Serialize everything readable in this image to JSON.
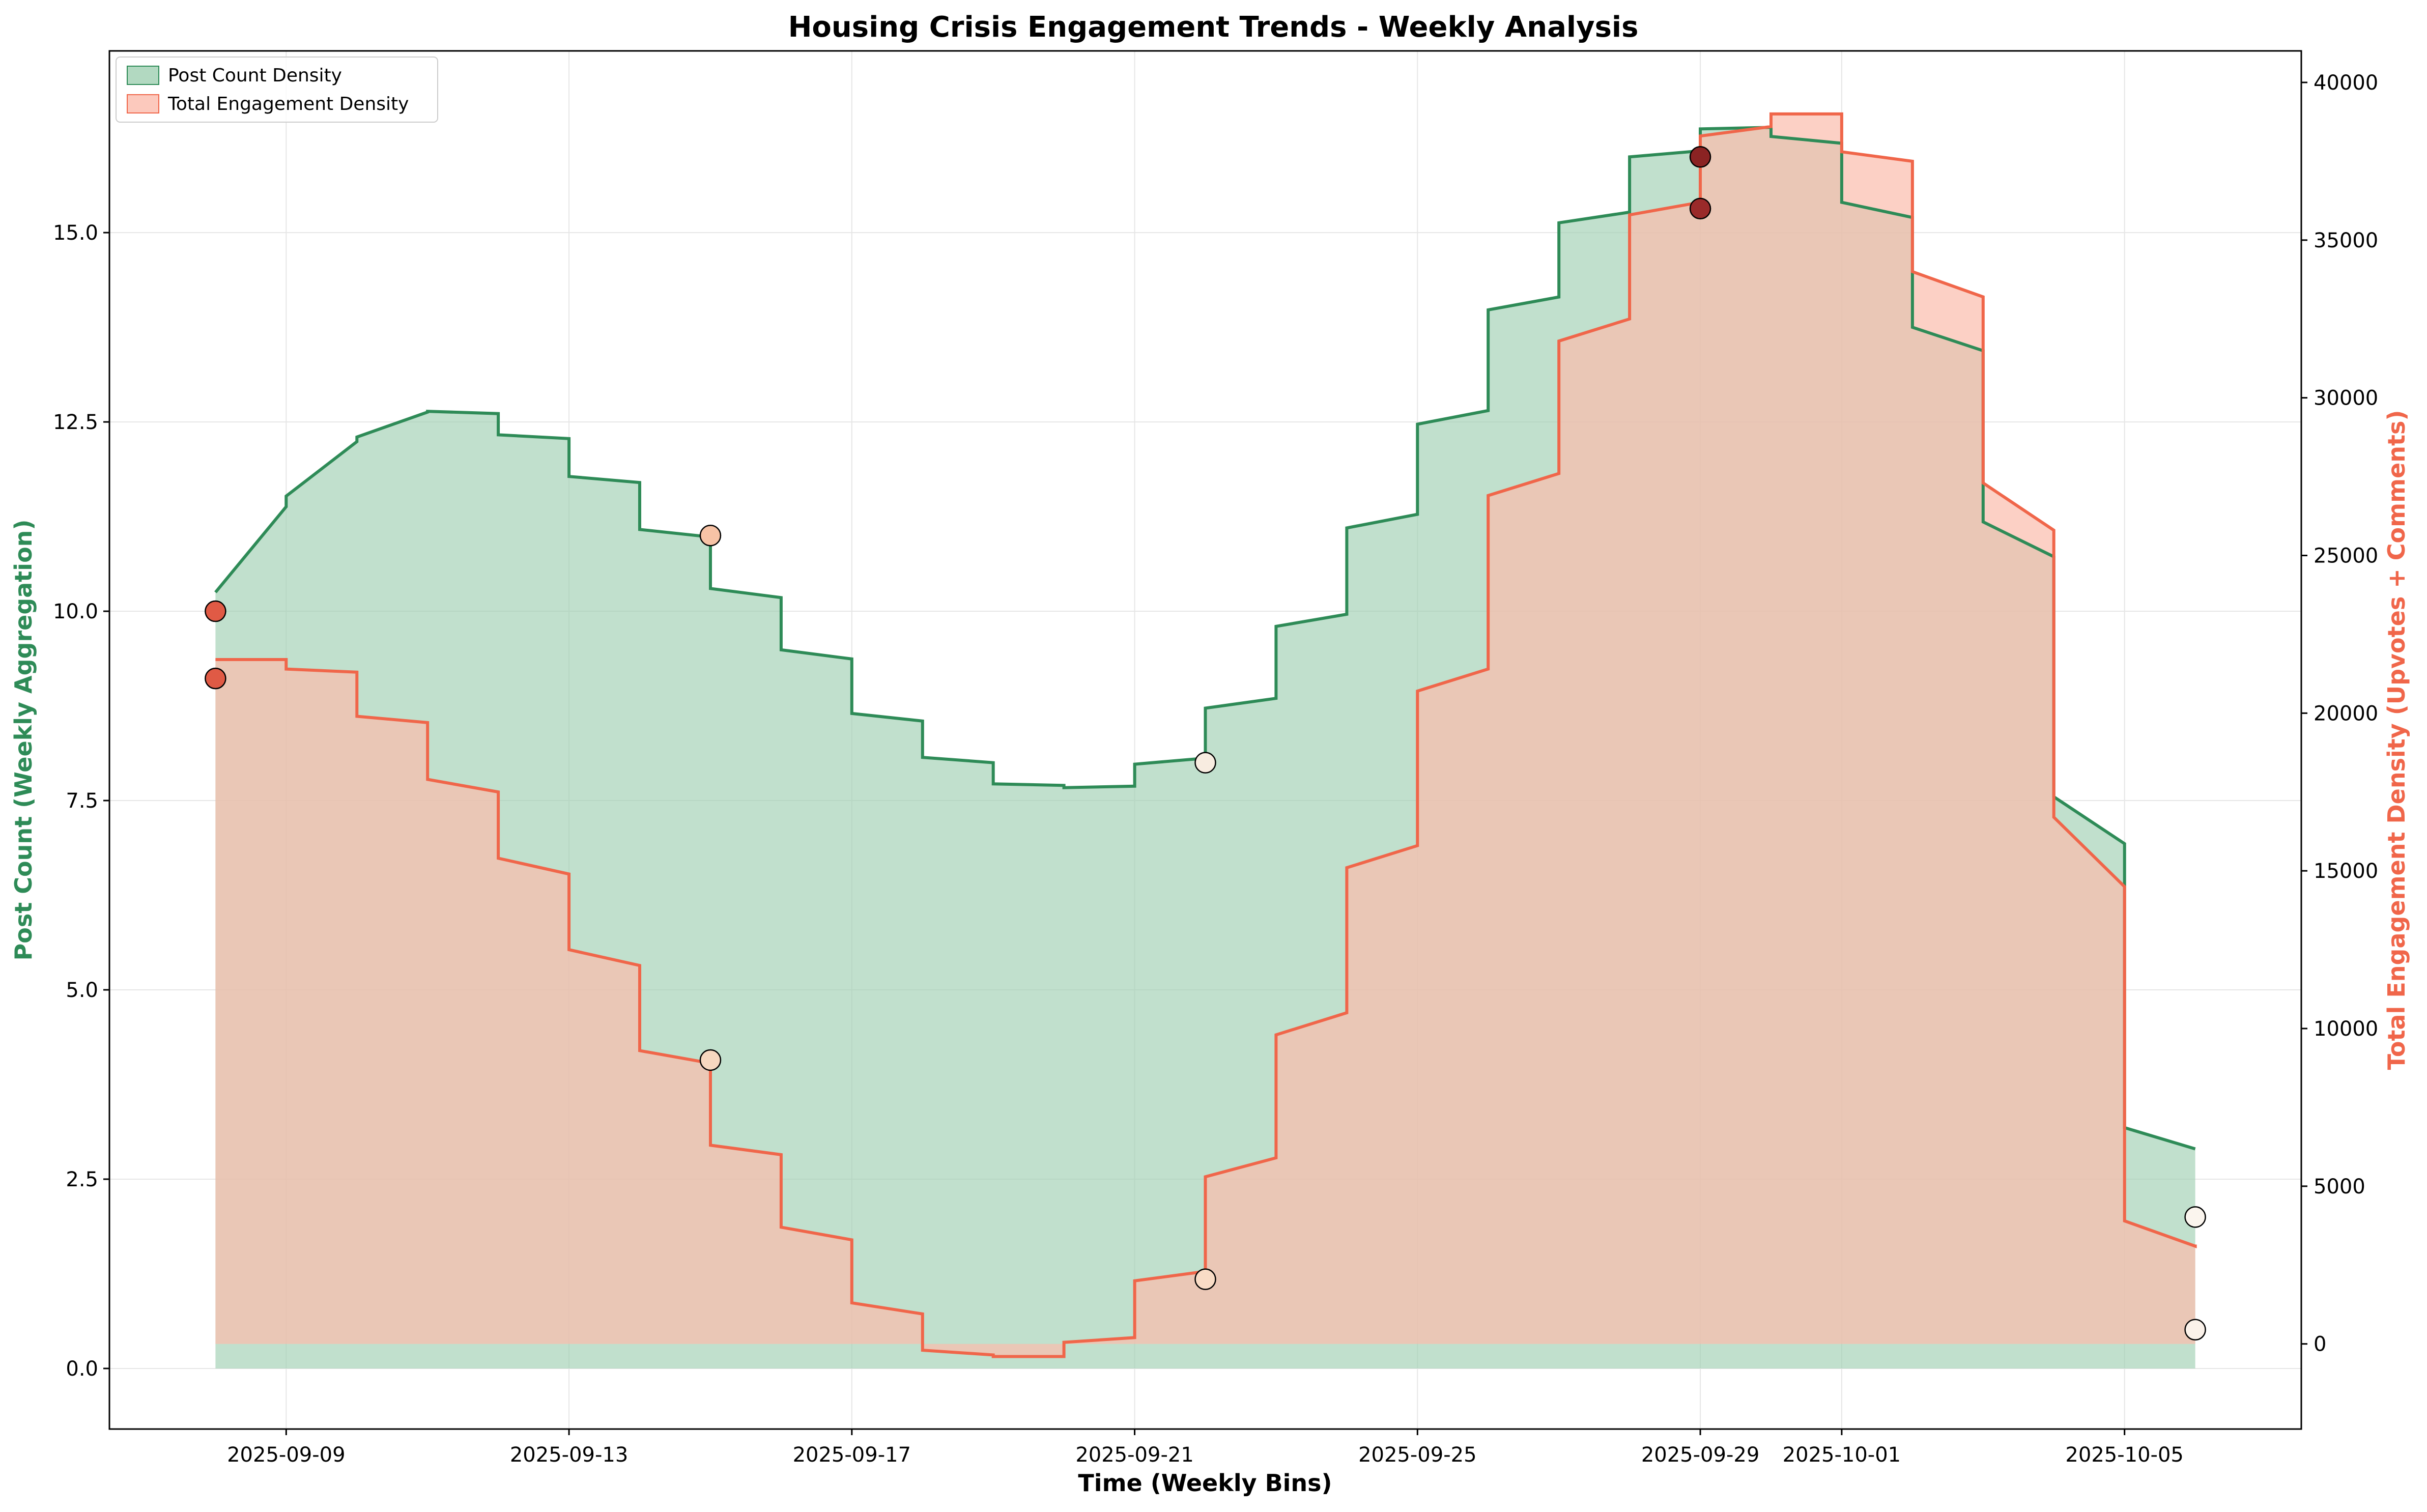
{
  "chart_data": {
    "type": "area",
    "title": "Housing Crisis Engagement Trends - Weekly Analysis",
    "xlabel": "Time (Weekly Bins)",
    "ylabel": "Post Count (Weekly Aggregation)",
    "y2label": "Total Engagement Density (Upvotes + Comments)",
    "x_ticks": [
      "2025-09-09",
      "2025-09-13",
      "2025-09-17",
      "2025-09-21",
      "2025-09-25",
      "2025-09-29",
      "2025-10-01",
      "2025-10-05"
    ],
    "y_ticks": [
      "0.0",
      "2.5",
      "5.0",
      "7.5",
      "10.0",
      "12.5",
      "15.0"
    ],
    "y2_ticks": [
      "0",
      "5000",
      "10000",
      "15000",
      "20000",
      "25000",
      "30000",
      "35000",
      "40000"
    ],
    "xlim": [
      "2025-09-06T12:00",
      "2025-10-07T12:00"
    ],
    "ylim": [
      -0.8,
      17.4
    ],
    "y2lim": [
      -2700,
      41000
    ],
    "grid": true,
    "legend_position": "top-left",
    "x": [
      "2025-09-08",
      "2025-09-09",
      "2025-09-10",
      "2025-09-11",
      "2025-09-12",
      "2025-09-13",
      "2025-09-14",
      "2025-09-15",
      "2025-09-16",
      "2025-09-17",
      "2025-09-18",
      "2025-09-19",
      "2025-09-20",
      "2025-09-21",
      "2025-09-22",
      "2025-09-23",
      "2025-09-24",
      "2025-09-25",
      "2025-09-26",
      "2025-09-27",
      "2025-09-28",
      "2025-09-29",
      "2025-09-30",
      "2025-10-01",
      "2025-10-02",
      "2025-10-03",
      "2025-10-04",
      "2025-10-05",
      "2025-10-06"
    ],
    "series": [
      {
        "name": "Post Count Density",
        "axis": "left",
        "color": "#2e8b57",
        "fill": "#9fcfb2",
        "start": [
          10.25,
          11.52,
          12.3,
          12.64,
          12.33,
          11.78,
          11.08,
          10.3,
          9.49,
          8.65,
          8.07,
          7.72,
          7.67,
          7.98,
          8.72,
          9.8,
          11.1,
          12.47,
          13.98,
          15.13,
          16.0,
          16.37,
          16.27,
          15.4,
          13.75,
          11.18,
          7.55,
          3.18,
          2.9
        ],
        "end": [
          11.38,
          12.24,
          12.63,
          12.61,
          12.28,
          11.7,
          10.98,
          10.18,
          9.37,
          8.55,
          8.0,
          7.7,
          7.69,
          8.06,
          8.85,
          9.96,
          11.28,
          12.65,
          14.15,
          15.27,
          16.08,
          16.39,
          16.18,
          15.2,
          13.44,
          10.72,
          6.93,
          2.9,
          2.9
        ]
      },
      {
        "name": "Total Engagement Density",
        "axis": "right",
        "color": "#f0664a",
        "fill": "#fbbcac",
        "start": [
          21700,
          21400,
          19900,
          17900,
          15400,
          12500,
          9300,
          6300,
          3700,
          1300,
          -200,
          -400,
          50,
          2000,
          5300,
          9800,
          15100,
          20700,
          26900,
          31800,
          35800,
          38300,
          39000,
          37800,
          34000,
          27300,
          16700,
          3900,
          3150
        ],
        "end": [
          21700,
          21300,
          19700,
          17500,
          14900,
          12000,
          8900,
          6000,
          3300,
          950,
          -350,
          -400,
          200,
          2300,
          5900,
          10500,
          15800,
          21400,
          27600,
          32500,
          36200,
          38600,
          39000,
          37500,
          33200,
          25800,
          14500,
          3100,
          3150
        ]
      }
    ],
    "markers": [
      {
        "x": "2025-09-08",
        "y": 10.0,
        "axis": "left",
        "color": "#e05a45"
      },
      {
        "x": "2025-09-08",
        "y": 21100,
        "axis": "right",
        "color": "#e05a45"
      },
      {
        "x": "2025-09-15",
        "y": 11.0,
        "axis": "left",
        "color": "#f7c3a6"
      },
      {
        "x": "2025-09-15",
        "y": 9000,
        "axis": "right",
        "color": "#f7d8c0"
      },
      {
        "x": "2025-09-22",
        "y": 8.0,
        "axis": "left",
        "color": "#f8ece0"
      },
      {
        "x": "2025-09-22",
        "y": 2050,
        "axis": "right",
        "color": "#f9dcc6"
      },
      {
        "x": "2025-09-29",
        "y": 16.0,
        "axis": "left",
        "color": "#8b2323"
      },
      {
        "x": "2025-09-29",
        "y": 36000,
        "axis": "right",
        "color": "#9a2a2a"
      },
      {
        "x": "2025-10-06",
        "y": 2.0,
        "axis": "left",
        "color": "#fbf5ee"
      },
      {
        "x": "2025-10-06",
        "y": 450,
        "axis": "right",
        "color": "#fbf2ea"
      }
    ],
    "grid_color": "#e6e6e6"
  }
}
